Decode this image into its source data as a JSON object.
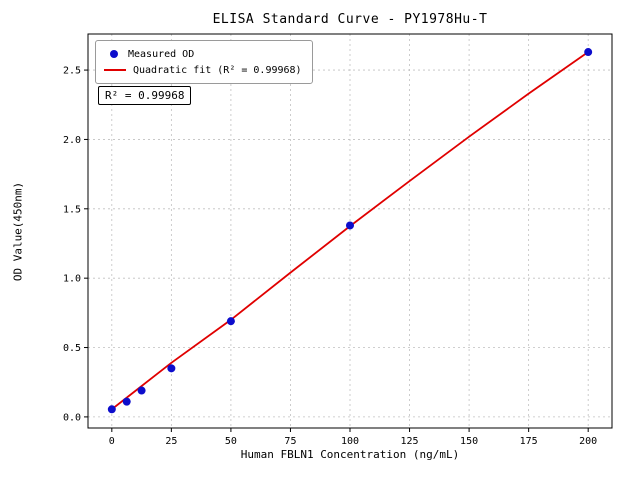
{
  "chart_data": {
    "type": "scatter",
    "title": "ELISA Standard Curve - PY1978Hu-T",
    "xlabel": "Human FBLN1 Concentration (ng/mL)",
    "ylabel": "OD Value(450nm)",
    "xlim": [
      -10,
      210
    ],
    "ylim": [
      -0.08,
      2.76
    ],
    "xticks": [
      0,
      25,
      50,
      75,
      100,
      125,
      150,
      175,
      200
    ],
    "xtick_labels": [
      "0",
      "25",
      "50",
      "75",
      "100",
      "125",
      "150",
      "175",
      "200"
    ],
    "yticks": [
      0.0,
      0.5,
      1.0,
      1.5,
      2.0,
      2.5
    ],
    "ytick_labels": [
      "0.0",
      "0.5",
      "1.0",
      "1.5",
      "2.0",
      "2.5"
    ],
    "grid": true,
    "legend_position": "upper left",
    "annotation": "R² = 0.99968",
    "series": [
      {
        "name": "Measured OD",
        "type": "scatter",
        "color": "#0d0dcc",
        "x": [
          0,
          6.25,
          12.5,
          25,
          50,
          100,
          200
        ],
        "y": [
          0.055,
          0.11,
          0.19,
          0.35,
          0.69,
          1.38,
          2.63
        ]
      },
      {
        "name": "Quadratic fit (R² = 0.99968)",
        "type": "line",
        "color": "#e00000",
        "x": [
          0,
          25,
          50,
          75,
          100,
          125,
          150,
          175,
          200
        ],
        "y": [
          0.055,
          0.39,
          0.7,
          1.04,
          1.375,
          1.7,
          2.02,
          2.33,
          2.63
        ]
      }
    ]
  }
}
